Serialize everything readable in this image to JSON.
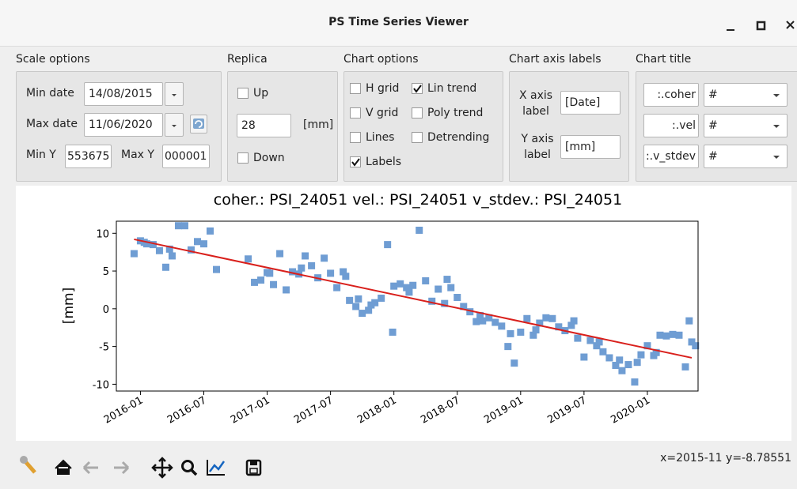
{
  "window": {
    "title": "PS Time Series Viewer"
  },
  "scale_options": {
    "title": "Scale options",
    "min_date_label": "Min date",
    "min_date": "14/08/2015",
    "max_date_label": "Max date",
    "max_date": "11/06/2020",
    "min_y_label": "Min Y",
    "min_y": "553675",
    "max_y_label": "Max Y",
    "max_y": "000001"
  },
  "replica": {
    "title": "Replica",
    "up": {
      "label": "Up",
      "checked": false
    },
    "value": "28",
    "unit": "[mm]",
    "down": {
      "label": "Down",
      "checked": false
    }
  },
  "chart_options": {
    "title": "Chart options",
    "items": [
      {
        "label": "H grid",
        "checked": false
      },
      {
        "label": "Lin trend",
        "checked": true
      },
      {
        "label": "V grid",
        "checked": false
      },
      {
        "label": "Poly trend",
        "checked": false
      },
      {
        "label": "Lines",
        "checked": false
      },
      {
        "label": "Detrending",
        "checked": false
      },
      {
        "label": "Labels",
        "checked": true
      }
    ]
  },
  "axis_labels": {
    "title": "Chart axis labels",
    "x_label": "X axis label",
    "x_value": "[Date]",
    "y_label": "Y axis label",
    "y_value": "[mm]"
  },
  "chart_title_panel": {
    "title": "Chart title",
    "rows": [
      {
        "field": "coher.:",
        "value": "#"
      },
      {
        "field": "vel.:",
        "value": "#"
      },
      {
        "field": "v_stdev.:",
        "value": "#"
      }
    ]
  },
  "chart_data": {
    "type": "scatter",
    "title": "coher.: PSI_24051 vel.: PSI_24051 v_stdev.: PSI_24051",
    "ylabel": "[mm]",
    "color": "#6f9dd3",
    "x": [
      2015.95,
      2016.0,
      2016.05,
      2016.1,
      2016.15,
      2016.2,
      2016.25,
      2016.3,
      2016.35,
      2016.4,
      2016.45,
      2016.5,
      2016.55,
      2016.6,
      2016.85,
      2016.9,
      2016.95,
      2017.0,
      2017.05,
      2017.1,
      2017.15,
      2017.2,
      2017.25,
      2017.3,
      2017.35,
      2017.4,
      2017.45,
      2017.5,
      2017.55,
      2017.6,
      2017.65,
      2017.7,
      2017.75,
      2017.8,
      2017.85,
      2017.9,
      2017.95,
      2018.0,
      2018.05,
      2018.1,
      2018.15,
      2018.2,
      2018.25,
      2018.3,
      2018.35,
      2018.4,
      2018.45,
      2018.5,
      2018.55,
      2018.6,
      2018.65,
      2018.7,
      2018.75,
      2018.8,
      2018.85,
      2018.9,
      2018.95,
      2019.0,
      2019.05,
      2019.1,
      2019.15,
      2019.2,
      2019.25,
      2019.3,
      2019.35,
      2019.4,
      2019.45,
      2019.5,
      2019.55,
      2019.6,
      2019.65,
      2019.7,
      2019.75,
      2019.8,
      2019.85,
      2019.9,
      2019.95,
      2020.0,
      2020.05,
      2020.1,
      2020.15,
      2020.2,
      2020.25,
      2020.3,
      2020.35,
      2017.72,
      2017.99,
      2020.33,
      2020.38,
      2016.03,
      2016.23,
      2017.02,
      2017.27,
      2017.62,
      2017.82,
      2018.12,
      2018.42,
      2018.68,
      2018.92,
      2019.12,
      2019.42,
      2019.62,
      2019.78,
      2019.92,
      2020.07
    ],
    "values": [
      7.3,
      9,
      8.6,
      8.5,
      7.7,
      5.5,
      7.0,
      11,
      11,
      7.8,
      8.9,
      8.6,
      10.3,
      5.2,
      6.6,
      3.5,
      3.8,
      4.8,
      3.2,
      7.3,
      2.5,
      4.9,
      4.6,
      7.0,
      5.7,
      4.1,
      6.7,
      4.7,
      2.8,
      4.9,
      1.1,
      0.3,
      -0.6,
      -0.2,
      0.8,
      1.4,
      8.5,
      3.0,
      3.3,
      2.8,
      3.1,
      10.4,
      3.7,
      1.0,
      2.6,
      0.7,
      2.8,
      1.5,
      0.3,
      -0.4,
      -1.7,
      -1.6,
      -1.2,
      -1.8,
      -2.3,
      -5.0,
      -7.2,
      -3.1,
      -1.3,
      -3.5,
      -1.9,
      -1.2,
      -1.3,
      -2.4,
      -2.9,
      -2.2,
      -3.9,
      -6.4,
      -4.2,
      -4.9,
      -5.7,
      -6.5,
      -7.5,
      -8.2,
      -7.4,
      -9.7,
      -6.1,
      -4.9,
      -6.2,
      -3.5,
      -3.6,
      -3.4,
      -3.5,
      -7.7,
      -4.4,
      1.3,
      -3.1,
      -1.6,
      -4.9,
      8.8,
      7.9,
      4.7,
      5.4,
      4.3,
      0.5,
      2.2,
      3.9,
      -0.9,
      -3.3,
      -2.8,
      -1.6,
      -4.4,
      -6.8,
      -7.1,
      -5.8
    ],
    "trend": {
      "x": [
        2015.95,
        2020.35
      ],
      "values": [
        9.2,
        -6.5
      ],
      "color": "#d9201c"
    },
    "xlim": [
      2015.81,
      2020.4
    ],
    "ylim": [
      -10.9,
      11.6
    ],
    "xticks": [
      {
        "value": 2016.0,
        "label": "2016-01"
      },
      {
        "value": 2016.5,
        "label": "2016-07"
      },
      {
        "value": 2017.0,
        "label": "2017-01"
      },
      {
        "value": 2017.5,
        "label": "2017-07"
      },
      {
        "value": 2018.0,
        "label": "2018-01"
      },
      {
        "value": 2018.5,
        "label": "2018-07"
      },
      {
        "value": 2019.0,
        "label": "2019-01"
      },
      {
        "value": 2019.5,
        "label": "2019-07"
      },
      {
        "value": 2020.0,
        "label": "2020-01"
      }
    ],
    "yticks": [
      -10,
      -5,
      0,
      5,
      10
    ]
  },
  "status": "x=2015-11 y=-8.78551"
}
